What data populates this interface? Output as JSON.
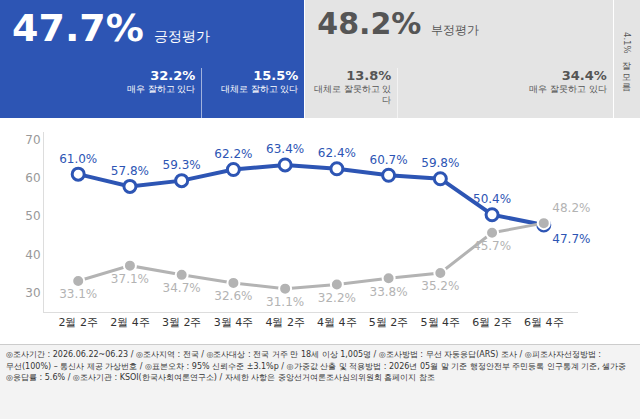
{
  "header": {
    "positive": {
      "value": "47.7%",
      "label": "긍정평가",
      "parts": [
        {
          "value": "32.2%",
          "label": "매우 잘하고 있다"
        },
        {
          "value": "15.5%",
          "label": "대체로 잘하고 있다"
        }
      ]
    },
    "negative": {
      "value": "48.2%",
      "label": "부정평가",
      "parts": [
        {
          "value": "13.8%",
          "label": "대체로 잘못하고 있다"
        },
        {
          "value": "34.4%",
          "label": "매우 잘못하고 있다"
        }
      ]
    },
    "unknown": {
      "value": "4.1%",
      "label": "잘 모름"
    }
  },
  "chart_data": {
    "type": "line",
    "categories": [
      "2월 2주",
      "2월 4주",
      "3월 2주",
      "3월 4주",
      "4월 2주",
      "4월 4주",
      "5월 2주",
      "5월 4주",
      "6월 2주",
      "6월 4주"
    ],
    "series": [
      {
        "color": "#2d55b4",
        "marker": "circle",
        "values": [
          61.0,
          57.8,
          59.3,
          62.2,
          63.4,
          62.4,
          60.7,
          59.8,
          50.4,
          47.7
        ],
        "value_labels": [
          "61.0%",
          "57.8%",
          "59.3%",
          "62.2%",
          "63.4%",
          "62.4%",
          "60.7%",
          "59.8%",
          "50.4%",
          "47.7%"
        ]
      },
      {
        "color": "#b3b3b3",
        "marker": "circle",
        "values": [
          33.1,
          37.1,
          34.7,
          32.6,
          31.1,
          32.2,
          33.8,
          35.2,
          45.7,
          48.2
        ],
        "value_labels": [
          "33.1%",
          "37.1%",
          "34.7%",
          "32.6%",
          "31.1%",
          "32.2%",
          "33.8%",
          "35.2%",
          "45.7%",
          "48.2%"
        ]
      }
    ],
    "ylim": [
      25,
      72
    ],
    "yticks": [
      30,
      40,
      50,
      60,
      70
    ],
    "grid": false,
    "data_labels": true
  },
  "footnote": [
    "◎조사기간 : 2026.06.22~06.23 / ◎조사지역 : 전국 / ◎조사대상 : 전국 거주 만 18세 이상 1,005명 / ◎조사방법 : 무선 자동응답(ARS) 조사 / ◎피조사자선정방법 :",
    "무선(100%) – 통신사 제공 가상번호 / ◎표본오차 : 95% 신뢰수준 ±3.1%p / ◎가중값 산출 및 적용방법 : 2026년 05월 말 기준 행정안전부 주민등록 인구통계 기준, 셀가중",
    "◎응답률 : 5.6% / ◎조사기관 : KSOI(한국사회여론연구소) / 자세한 사항은 중앙선거여론조사심의위원회 홈페이지 참조"
  ]
}
